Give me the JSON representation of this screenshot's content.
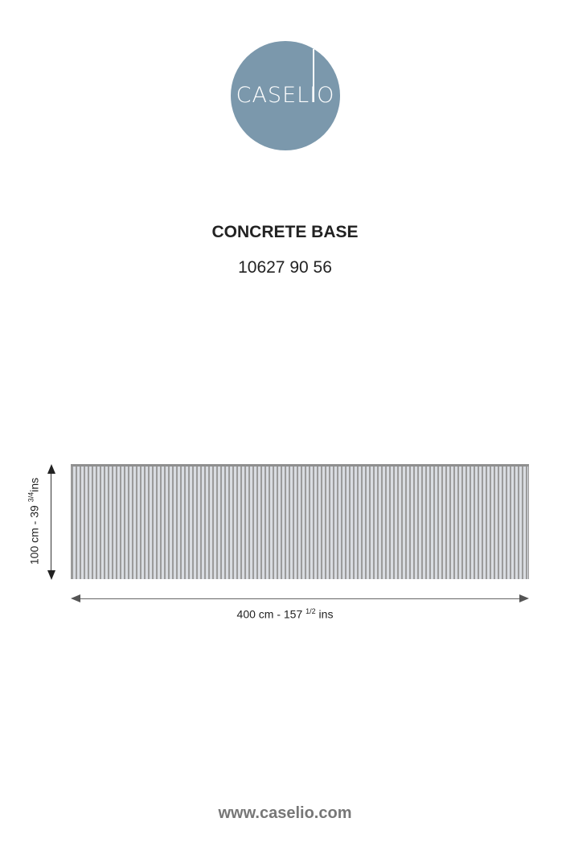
{
  "logo": {
    "text": "CASELIO",
    "color": "#7b98ac"
  },
  "product": {
    "title": "CONCRETE BASE",
    "code": "10627 90 56"
  },
  "dimensions": {
    "height": {
      "main": "100 cm - 39 ",
      "sup": "3/4",
      "unit": "ins"
    },
    "width": {
      "main": "400 cm - 157 ",
      "sup": "1/2",
      "unit": " ins"
    }
  },
  "footer": {
    "url": "www.caselio.com"
  }
}
